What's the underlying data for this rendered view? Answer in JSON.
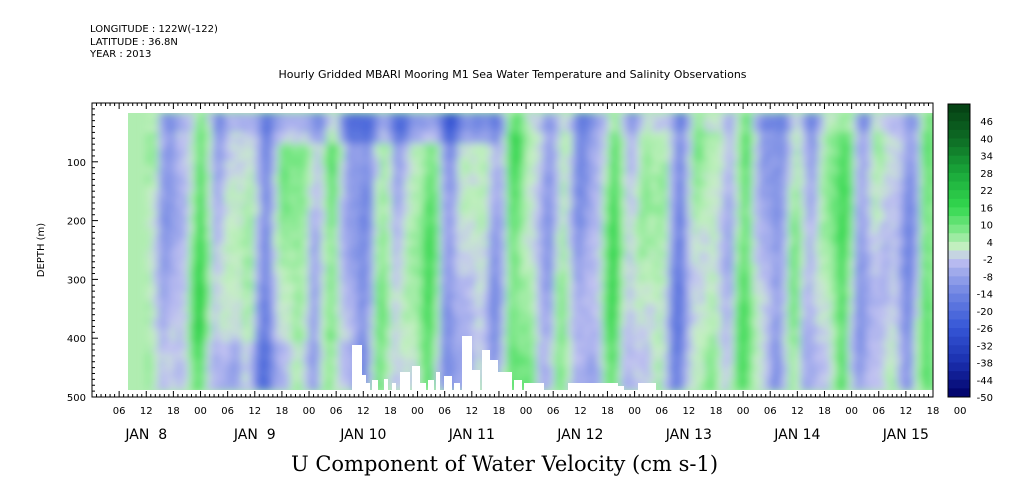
{
  "header": {
    "longitude": "LONGITUDE : 122W(-122)",
    "latitude": "LATITUDE : 36.8N",
    "year": "YEAR : 2013"
  },
  "chart_data": {
    "type": "heatmap",
    "title": "Hourly Gridded MBARI Mooring M1 Sea Water Temperature and Salinity Observations",
    "xlabel": "U Component of Water Velocity (cm s-1)",
    "ylabel": "DEPTH (m)",
    "x_range_hours": [
      0,
      186
    ],
    "ylim": [
      500,
      0
    ],
    "y_ticks": [
      100,
      200,
      300,
      400,
      500
    ],
    "hour_ticks": [
      "06",
      "12",
      "18",
      "00",
      "06",
      "12",
      "18",
      "00",
      "06",
      "12",
      "18",
      "00",
      "06",
      "12",
      "18",
      "00",
      "06",
      "12",
      "18",
      "00",
      "06",
      "12",
      "18",
      "00",
      "06",
      "12",
      "18",
      "00",
      "06",
      "12",
      "18",
      "00"
    ],
    "day_labels": [
      "JAN  8",
      "JAN  9",
      "JAN 10",
      "JAN 11",
      "JAN 12",
      "JAN 13",
      "JAN 14",
      "JAN 15"
    ],
    "colorbar": {
      "labels": [
        "46",
        "40",
        "34",
        "28",
        "22",
        "16",
        "10",
        "4",
        "-2",
        "-8",
        "-14",
        "-20",
        "-26",
        "-32",
        "-38",
        "-44",
        "-50"
      ],
      "range": [
        -50,
        52
      ],
      "step": 3
    },
    "data_extent": {
      "depth_top": 18,
      "depth_bottom": 485,
      "start_hour": 12,
      "end_hour": 185
    },
    "pattern": "Alternating vertical bands of positive (green, +2 to +16) and negative (blue/violet, -2 to -20) velocity across the full depth, strongest negatives near the surface around JAN 10-11"
  }
}
